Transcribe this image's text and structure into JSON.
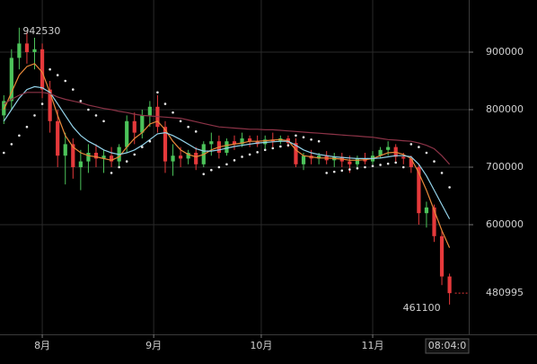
{
  "chart_data": {
    "type": "candlestick",
    "x": [
      1,
      3,
      5,
      7,
      9,
      11,
      13,
      15,
      17,
      19,
      21,
      23,
      25,
      27,
      29,
      31,
      33,
      35,
      37,
      39,
      41,
      43,
      45,
      47,
      49,
      51,
      53,
      55,
      57,
      59,
      61,
      63,
      65,
      67,
      69,
      71,
      73,
      75,
      77,
      79,
      81,
      83,
      85,
      87,
      89,
      91,
      93,
      95,
      97,
      99,
      101,
      103,
      105,
      107,
      109,
      111,
      113,
      115,
      117
    ],
    "open": [
      790000,
      815000,
      890000,
      915000,
      900000,
      905000,
      835000,
      780000,
      720000,
      740000,
      700000,
      710000,
      725000,
      715000,
      720000,
      710000,
      735000,
      780000,
      760000,
      790000,
      805000,
      770000,
      710000,
      720000,
      715000,
      725000,
      705000,
      740000,
      745000,
      725000,
      745000,
      740000,
      750000,
      745000,
      740000,
      748000,
      745000,
      750000,
      742000,
      705000,
      720000,
      715000,
      720000,
      712000,
      718000,
      710000,
      705000,
      715000,
      710000,
      720000,
      730000,
      735000,
      718000,
      715000,
      700000,
      620000,
      630000,
      580000,
      510000
    ],
    "high": [
      825000,
      905000,
      942530,
      935000,
      925000,
      915000,
      850000,
      800000,
      760000,
      750000,
      730000,
      740000,
      740000,
      730000,
      735000,
      740000,
      790000,
      795000,
      800000,
      815000,
      825000,
      780000,
      740000,
      735000,
      730000,
      735000,
      745000,
      760000,
      755000,
      750000,
      755000,
      760000,
      755000,
      755000,
      755000,
      760000,
      755000,
      755000,
      750000,
      725000,
      730000,
      725000,
      728000,
      725000,
      725000,
      720000,
      720000,
      725000,
      728000,
      735000,
      745000,
      740000,
      725000,
      720000,
      705000,
      640000,
      635000,
      590000,
      515000
    ],
    "low": [
      775000,
      800000,
      870000,
      880000,
      870000,
      820000,
      760000,
      700000,
      670000,
      680000,
      660000,
      690000,
      700000,
      690000,
      700000,
      700000,
      725000,
      740000,
      750000,
      770000,
      760000,
      690000,
      685000,
      700000,
      705000,
      695000,
      700000,
      720000,
      715000,
      720000,
      730000,
      735000,
      735000,
      735000,
      730000,
      735000,
      740000,
      735000,
      700000,
      695000,
      705000,
      705000,
      705000,
      700000,
      700000,
      690000,
      700000,
      705000,
      705000,
      715000,
      720000,
      710000,
      705000,
      690000,
      600000,
      595000,
      570000,
      495000,
      461100
    ],
    "close": [
      815000,
      890000,
      915000,
      900000,
      905000,
      835000,
      780000,
      720000,
      740000,
      700000,
      710000,
      725000,
      715000,
      720000,
      710000,
      735000,
      780000,
      760000,
      790000,
      805000,
      770000,
      710000,
      720000,
      715000,
      725000,
      705000,
      740000,
      745000,
      725000,
      745000,
      740000,
      750000,
      745000,
      740000,
      748000,
      745000,
      750000,
      742000,
      705000,
      720000,
      715000,
      720000,
      712000,
      718000,
      710000,
      705000,
      715000,
      710000,
      720000,
      730000,
      735000,
      718000,
      715000,
      700000,
      620000,
      630000,
      580000,
      510000,
      480995
    ],
    "up_color": "#4cc35a",
    "down_color": "#e5393b",
    "series": [
      {
        "color": "#e8893a",
        "values": [
          800000,
          830000,
          860000,
          875000,
          880000,
          865000,
          830000,
          790000,
          755000,
          735000,
          725000,
          720000,
          718000,
          715000,
          712000,
          718000,
          735000,
          750000,
          760000,
          775000,
          780000,
          765000,
          745000,
          730000,
          722000,
          718000,
          722000,
          730000,
          735000,
          738000,
          740000,
          742000,
          745000,
          745000,
          746000,
          747000,
          748000,
          746000,
          730000,
          720000,
          718000,
          716000,
          716000,
          715000,
          714000,
          712000,
          712000,
          713000,
          715000,
          720000,
          725000,
          726000,
          722000,
          715000,
          690000,
          660000,
          625000,
          590000,
          560000
        ]
      },
      {
        "color": "#93d3ea",
        "values": [
          780000,
          800000,
          820000,
          835000,
          840000,
          838000,
          830000,
          810000,
          790000,
          770000,
          755000,
          745000,
          738000,
          730000,
          725000,
          722000,
          725000,
          730000,
          738000,
          748000,
          758000,
          760000,
          755000,
          748000,
          740000,
          732000,
          728000,
          728000,
          730000,
          733000,
          736000,
          738000,
          740000,
          742000,
          743000,
          744000,
          745000,
          745000,
          738000,
          730000,
          725000,
          722000,
          720000,
          718000,
          717000,
          716000,
          715000,
          715000,
          715000,
          716000,
          718000,
          720000,
          720000,
          718000,
          705000,
          685000,
          660000,
          635000,
          610000
        ]
      },
      {
        "color": "#8c3347",
        "values": [
          810000,
          818000,
          825000,
          830000,
          830000,
          830000,
          828000,
          822000,
          818000,
          815000,
          812000,
          808000,
          805000,
          802000,
          800000,
          797000,
          795000,
          792000,
          790000,
          789000,
          788000,
          787000,
          786000,
          785000,
          782000,
          779000,
          776000,
          773000,
          770000,
          769000,
          768000,
          767000,
          766000,
          766000,
          765000,
          765000,
          764000,
          763000,
          762000,
          761000,
          760000,
          759000,
          758000,
          757000,
          756000,
          755000,
          754000,
          753000,
          752000,
          750000,
          748000,
          747000,
          746000,
          745000,
          742000,
          738000,
          732000,
          720000,
          705000
        ]
      }
    ],
    "sar": {
      "color": "#e6e6e6",
      "values": [
        725000,
        740000,
        755000,
        770000,
        790000,
        810000,
        870000,
        860000,
        850000,
        835000,
        815000,
        800000,
        790000,
        780000,
        690000,
        700000,
        710000,
        722000,
        735000,
        745000,
        830000,
        810000,
        795000,
        780000,
        770000,
        762000,
        688000,
        695000,
        700000,
        705000,
        712000,
        718000,
        722000,
        726000,
        730000,
        733000,
        736000,
        738000,
        755000,
        752000,
        748000,
        745000,
        690000,
        692000,
        694000,
        696000,
        698000,
        700000,
        702000,
        704000,
        706000,
        708000,
        700000,
        740000,
        735000,
        725000,
        710000,
        690000,
        665000
      ]
    },
    "xlim": [
      0,
      122
    ],
    "xticks": [
      {
        "value": 11,
        "label": "8月"
      },
      {
        "value": 40,
        "label": "9月"
      },
      {
        "value": 68,
        "label": "10月"
      },
      {
        "value": 97,
        "label": "11月"
      }
    ],
    "ylim": [
      409375,
      990625
    ],
    "yticks": [
      600000,
      700000,
      800000,
      900000
    ],
    "grid": true,
    "countdown": "08:04:0"
  }
}
